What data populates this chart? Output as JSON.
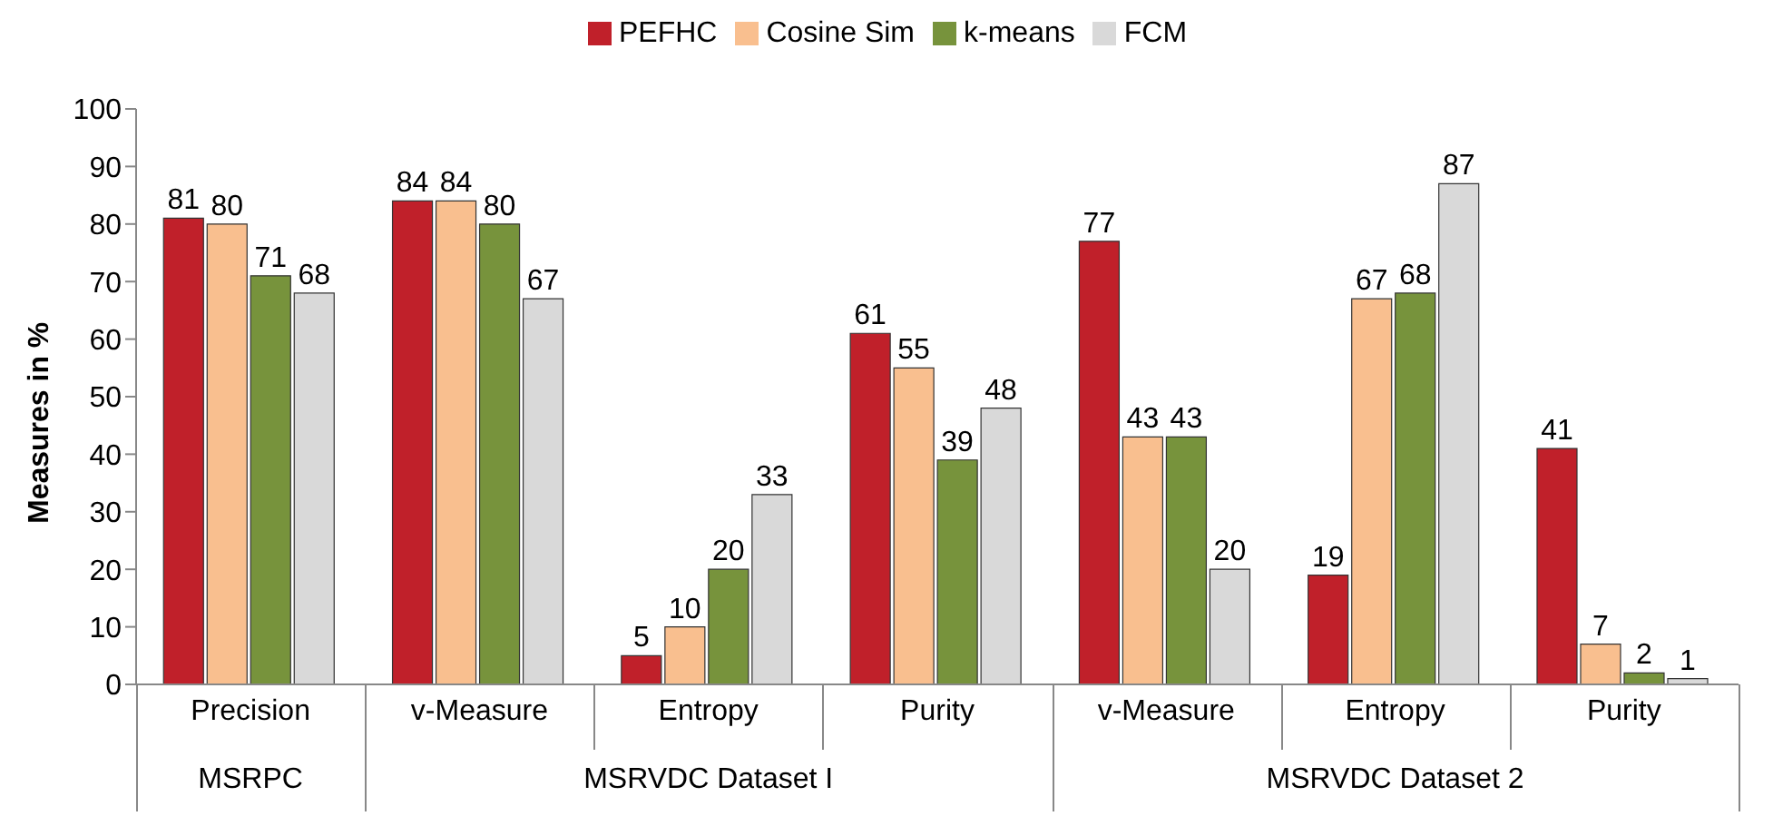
{
  "chart_data": {
    "type": "bar",
    "ylabel": "Measures in %",
    "categories": [
      "Precision",
      "v-Measure",
      "Entropy",
      "Purity",
      "v-Measure",
      "Entropy",
      "Purity"
    ],
    "series": [
      {
        "name": "PEFHC",
        "color": "#c0202a",
        "values": [
          81,
          84,
          5,
          61,
          77,
          19,
          41
        ]
      },
      {
        "name": "Cosine Sim",
        "color": "#f9bf8f",
        "values": [
          80,
          84,
          10,
          55,
          43,
          67,
          7
        ]
      },
      {
        "name": "k-means",
        "color": "#77933c",
        "values": [
          71,
          80,
          20,
          39,
          43,
          68,
          2
        ]
      },
      {
        "name": "FCM",
        "color": "#d9d9d9",
        "values": [
          68,
          67,
          33,
          48,
          20,
          87,
          1
        ]
      }
    ],
    "ylim": [
      0,
      100
    ],
    "yticks": [
      0,
      10,
      20,
      30,
      40,
      50,
      60,
      70,
      80,
      90,
      100
    ],
    "data_labels": true,
    "grid": false,
    "legend": "top",
    "annotations": [
      "MSRPC",
      "MSRVDC Dataset I",
      "MSRVDC Dataset 2"
    ]
  }
}
